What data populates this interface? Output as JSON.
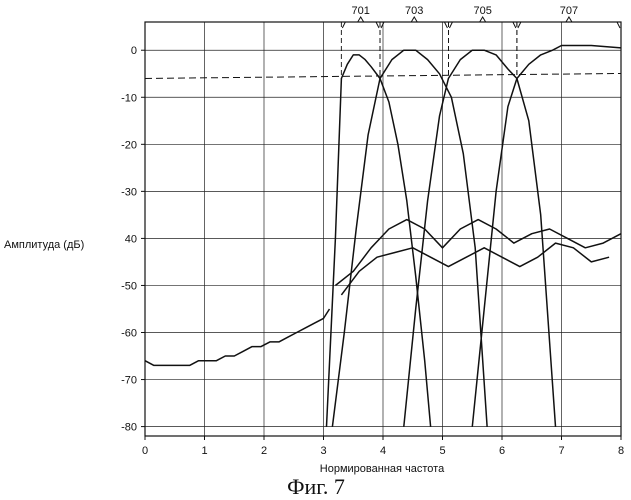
{
  "caption": "Фиг. 7",
  "chart_data": {
    "type": "line",
    "xlabel": "Нормированная частота",
    "ylabel": "Амплитуда (дБ)",
    "xlim": [
      0,
      8
    ],
    "ylim": [
      -82,
      6
    ],
    "x_ticks": [
      0,
      1,
      2,
      3,
      4,
      5,
      6,
      7,
      8
    ],
    "y_ticks": [
      0,
      -10,
      -20,
      -30,
      -40,
      -50,
      -60,
      -70,
      -80
    ],
    "x_tick_labels": [
      "0",
      "1",
      "2",
      "3",
      "4",
      "5",
      "6",
      "7",
      "8"
    ],
    "y_tick_labels": [
      "0",
      "-10",
      "-20",
      "-30",
      "40",
      "-50",
      "-60",
      "-70",
      "-80"
    ],
    "grid": true,
    "reference_level_db": -6,
    "band_labels": [
      {
        "label": "701",
        "x_start": 3.3,
        "x_end": 3.95
      },
      {
        "label": "703",
        "x_start": 3.95,
        "x_end": 5.1
      },
      {
        "label": "705",
        "x_start": 5.1,
        "x_end": 6.25
      },
      {
        "label": "707",
        "x_start": 6.25,
        "x_end": 8.0
      }
    ],
    "series": [
      {
        "role": "band-701",
        "x": [
          3.05,
          3.2,
          3.3,
          3.4,
          3.5,
          3.6,
          3.7,
          3.8,
          3.95,
          4.1,
          4.25,
          4.4,
          4.55,
          4.7,
          4.8
        ],
        "y": [
          -80,
          -40,
          -6,
          -3,
          -1,
          -1,
          -2,
          -3.5,
          -6,
          -11,
          -20,
          -32,
          -48,
          -66,
          -80
        ]
      },
      {
        "role": "band-703",
        "x": [
          3.15,
          3.35,
          3.55,
          3.75,
          3.95,
          4.15,
          4.35,
          4.55,
          4.75,
          4.95,
          5.15,
          5.35,
          5.55,
          5.75
        ],
        "y": [
          -80,
          -60,
          -38,
          -18,
          -6,
          -2,
          0,
          0,
          -2,
          -5,
          -10,
          -22,
          -42,
          -80
        ]
      },
      {
        "role": "band-705",
        "x": [
          4.35,
          4.55,
          4.75,
          4.95,
          5.1,
          5.3,
          5.5,
          5.7,
          5.9,
          6.1,
          6.25,
          6.45,
          6.65,
          6.9
        ],
        "y": [
          -80,
          -55,
          -32,
          -14,
          -6,
          -2,
          0,
          0,
          -1,
          -4,
          -6,
          -15,
          -35,
          -80
        ]
      },
      {
        "role": "band-707",
        "x": [
          5.5,
          5.7,
          5.9,
          6.1,
          6.25,
          6.45,
          6.65,
          6.85,
          7.0,
          7.2,
          7.5,
          8.0
        ],
        "y": [
          -80,
          -55,
          -30,
          -12,
          -6,
          -3,
          -1,
          0,
          1,
          1,
          1,
          0.5
        ]
      },
      {
        "role": "lowpass-sidelobes",
        "x": [
          0.0,
          0.15,
          0.3,
          0.45,
          0.6,
          0.75,
          0.9,
          1.05,
          1.2,
          1.35,
          1.5,
          1.65,
          1.8,
          1.95,
          2.1,
          2.25,
          2.4,
          2.55,
          2.7,
          2.85,
          3.0,
          3.1
        ],
        "y": [
          -66,
          -67,
          -67,
          -67,
          -67,
          -67,
          -66,
          -66,
          -66,
          -65,
          -65,
          -64,
          -63,
          -63,
          -62,
          -62,
          -61,
          -60,
          -59,
          -58,
          -57,
          -55
        ]
      },
      {
        "role": "sidelobes-high",
        "x": [
          3.2,
          3.5,
          3.8,
          4.1,
          4.4,
          4.7,
          5.0,
          5.3,
          5.6,
          5.9,
          6.2,
          6.5,
          6.8,
          7.1,
          7.4,
          7.7,
          8.0
        ],
        "y": [
          -50,
          -47,
          -42,
          -38,
          -36,
          -38,
          -42,
          -38,
          -36,
          -38,
          -41,
          -39,
          -38,
          -40,
          -42,
          -41,
          -39
        ]
      },
      {
        "role": "sidelobes-mid",
        "x": [
          3.3,
          3.6,
          3.9,
          4.2,
          4.5,
          4.8,
          5.1,
          5.4,
          5.7,
          6.0,
          6.3,
          6.6,
          6.9,
          7.2,
          7.5,
          7.8
        ],
        "y": [
          -52,
          -47,
          -44,
          -43,
          -42,
          -44,
          -46,
          -44,
          -42,
          -44,
          -46,
          -44,
          -41,
          -42,
          -45,
          -44
        ]
      }
    ]
  }
}
